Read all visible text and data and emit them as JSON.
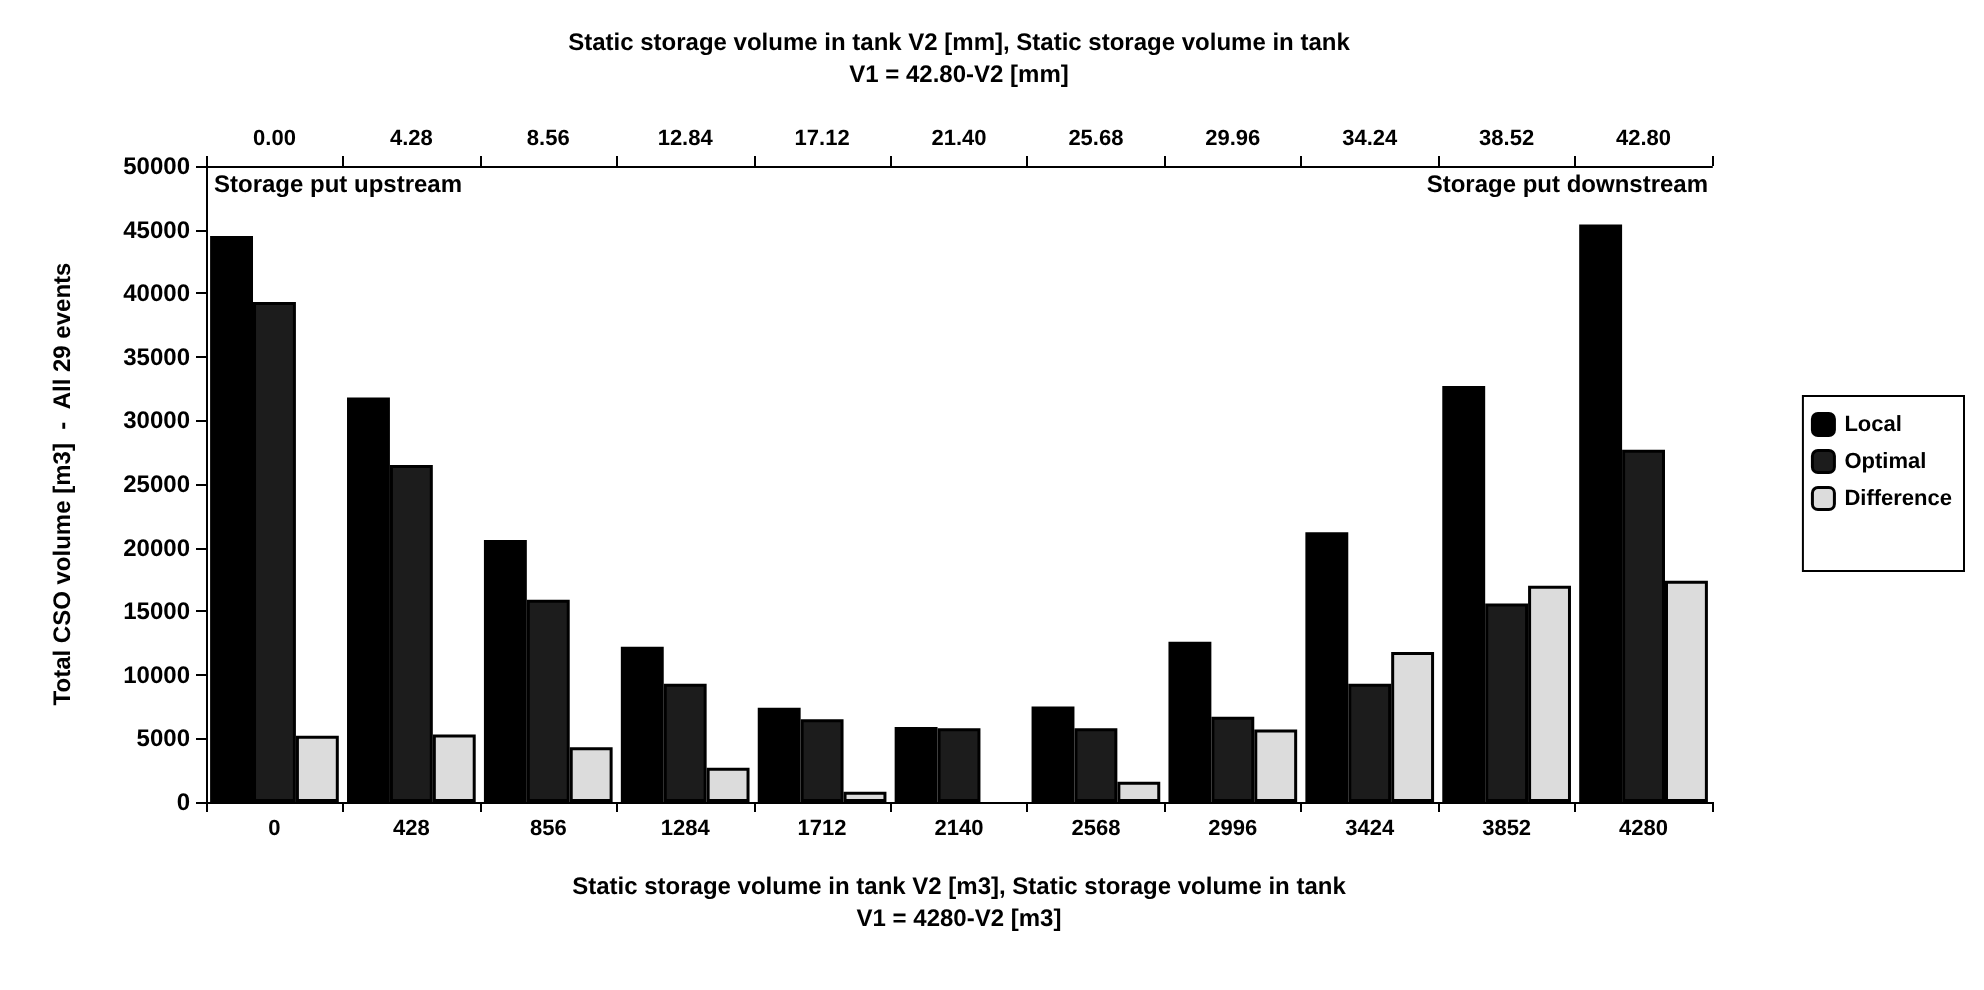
{
  "chart_data": {
    "type": "bar",
    "xlabel": "Static storage volume in tank V2 [m3], Static storage volume in tank\nV1 = 4280-V2 [m3]",
    "x2label": "Static storage volume in tank V2 [mm], Static storage volume in tank\nV1 = 42.80-V2 [mm]",
    "ylabel": "Total CSO volume [m3]  -  All 29 events",
    "categories": [
      "0",
      "428",
      "856",
      "1284",
      "1712",
      "2140",
      "2568",
      "2996",
      "3424",
      "3852",
      "4280"
    ],
    "series": [
      {
        "name": "Local",
        "color": "#000000",
        "values": [
          44500,
          31800,
          20600,
          12200,
          7400,
          5900,
          7500,
          12600,
          21200,
          32700,
          45400
        ]
      },
      {
        "name": "Optimal",
        "color": "#1c1c1c",
        "values": [
          39300,
          26500,
          15900,
          9300,
          6500,
          5800,
          5800,
          6700,
          9300,
          15600,
          27700
        ]
      },
      {
        "name": "Difference",
        "color": "#dcdcdc",
        "values": [
          5200,
          5300,
          4300,
          2700,
          800,
          null,
          1600,
          5700,
          11800,
          17000,
          17400
        ]
      }
    ],
    "ylim": [
      0,
      50000
    ],
    "yticks": [
      0,
      5000,
      10000,
      15000,
      20000,
      25000,
      30000,
      35000,
      40000,
      45000,
      50000
    ],
    "x2lim": [
      -2.14,
      44.94
    ],
    "x2ticks": [
      {
        "value": 0,
        "label": "0.00"
      },
      4.28,
      8.56,
      12.84,
      17.12,
      {
        "value": 21.4,
        "label": "21.40"
      },
      25.68,
      29.96,
      34.24,
      38.52,
      {
        "value": 42.8,
        "label": "42.80"
      }
    ],
    "annotations": [
      "Storage put upstream",
      "Storage put downstream"
    ],
    "legend": "right",
    "grid": false
  }
}
